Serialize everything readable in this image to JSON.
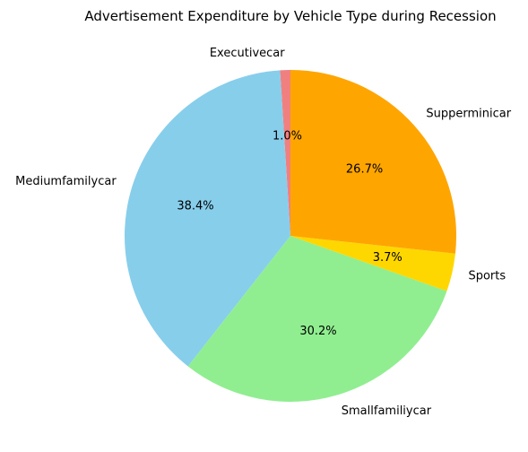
{
  "chart_data": {
    "type": "pie",
    "title": "Advertisement Expenditure by Vehicle Type during Recession",
    "start_angle_deg": 90,
    "direction": "counterclockwise",
    "slices": [
      {
        "label": "Executivecar",
        "value": 1.0,
        "pct_text": "1.0%",
        "color": "#f08080"
      },
      {
        "label": "Mediumfamilycar",
        "value": 38.4,
        "pct_text": "38.4%",
        "color": "#87ceeb"
      },
      {
        "label": "Smallfamiliycar",
        "value": 30.2,
        "pct_text": "30.2%",
        "color": "#90ee90"
      },
      {
        "label": "Sports",
        "value": 3.7,
        "pct_text": "3.7%",
        "color": "#ffd700"
      },
      {
        "label": "Supperminicar",
        "value": 26.7,
        "pct_text": "26.7%",
        "color": "#ffa500"
      }
    ]
  }
}
